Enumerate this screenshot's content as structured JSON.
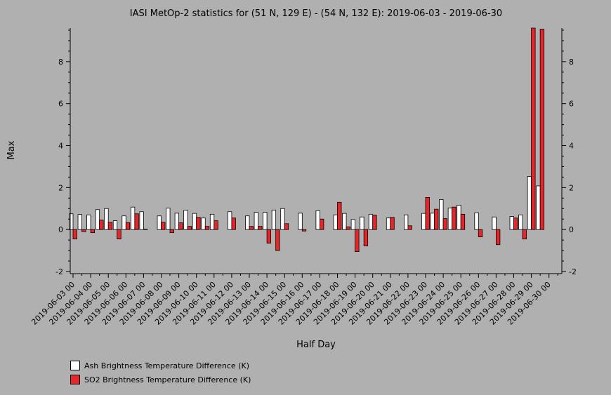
{
  "chart_data": {
    "type": "bar",
    "title": "IASI MetOp-2 statistics for (51 N, 129 E) - (54 N, 132 E): 2019-06-03 - 2019-06-30",
    "xlabel": "Half Day",
    "ylabel": "Max",
    "ylim": [
      -2.1,
      9.6
    ],
    "yticks": [
      -2,
      0,
      2,
      4,
      6,
      8
    ],
    "categories": [
      "2019-06-03 00",
      "2019-06-03 12",
      "2019-06-04 00",
      "2019-06-04 12",
      "2019-06-05 00",
      "2019-06-05 12",
      "2019-06-06 00",
      "2019-06-06 12",
      "2019-06-07 00",
      "2019-06-07 12",
      "2019-06-08 00",
      "2019-06-08 12",
      "2019-06-09 00",
      "2019-06-09 12",
      "2019-06-10 00",
      "2019-06-10 12",
      "2019-06-11 00",
      "2019-06-11 12",
      "2019-06-12 00",
      "2019-06-12 12",
      "2019-06-13 00",
      "2019-06-13 12",
      "2019-06-14 00",
      "2019-06-14 12",
      "2019-06-15 00",
      "2019-06-15 12",
      "2019-06-16 00",
      "2019-06-16 12",
      "2019-06-17 00",
      "2019-06-17 12",
      "2019-06-18 00",
      "2019-06-18 12",
      "2019-06-19 00",
      "2019-06-19 12",
      "2019-06-20 00",
      "2019-06-20 12",
      "2019-06-21 00",
      "2019-06-21 12",
      "2019-06-22 00",
      "2019-06-22 12",
      "2019-06-23 00",
      "2019-06-23 12",
      "2019-06-24 00",
      "2019-06-24 12",
      "2019-06-25 00",
      "2019-06-25 12",
      "2019-06-26 00",
      "2019-06-26 12",
      "2019-06-27 00",
      "2019-06-27 12",
      "2019-06-28 00",
      "2019-06-28 12",
      "2019-06-29 00",
      "2019-06-29 12",
      "2019-06-30 00",
      "2019-06-30 12"
    ],
    "tick_labels": [
      "2019-06-03 00",
      "2019-06-04 00",
      "2019-06-05 00",
      "2019-06-06 00",
      "2019-06-07 00",
      "2019-06-08 00",
      "2019-06-09 00",
      "2019-06-10 00",
      "2019-06-11 00",
      "2019-06-12 00",
      "2019-06-13 00",
      "2019-06-14 00",
      "2019-06-15 00",
      "2019-06-16 00",
      "2019-06-17 00",
      "2019-06-18 00",
      "2019-06-19 00",
      "2019-06-20 00",
      "2019-06-21 00",
      "2019-06-22 00",
      "2019-06-23 00",
      "2019-06-24 00",
      "2019-06-25 00",
      "2019-06-26 00",
      "2019-06-27 00",
      "2019-06-28 00",
      "2019-06-29 00",
      "2019-06-30 00"
    ],
    "series": [
      {
        "name": "Ash Brightness Temperature Difference (K)",
        "color": "#ffffff",
        "values": [
          0.75,
          0.72,
          0.7,
          0.95,
          1.0,
          0.42,
          0.65,
          1.07,
          0.85,
          null,
          0.65,
          1.02,
          0.78,
          0.92,
          0.77,
          0.55,
          0.73,
          null,
          0.85,
          null,
          0.65,
          0.82,
          0.82,
          0.93,
          1.0,
          null,
          0.78,
          null,
          0.9,
          null,
          0.7,
          0.77,
          0.48,
          0.6,
          0.73,
          null,
          0.55,
          null,
          0.7,
          null,
          0.77,
          0.78,
          1.43,
          1.03,
          1.16,
          null,
          0.8,
          null,
          0.6,
          null,
          0.62,
          0.7,
          2.53,
          2.08,
          null,
          null
        ]
      },
      {
        "name": "SO2 Brightness Temperature Difference (K)",
        "color": "#e8262a",
        "values": [
          -0.45,
          -0.1,
          -0.15,
          0.45,
          0.35,
          -0.45,
          0.33,
          0.75,
          0.02,
          null,
          0.35,
          -0.15,
          0.32,
          0.15,
          0.58,
          0.15,
          0.42,
          null,
          0.55,
          null,
          0.15,
          0.15,
          -0.65,
          -1.0,
          0.28,
          null,
          -0.07,
          null,
          0.5,
          null,
          1.3,
          0.13,
          -1.05,
          -0.78,
          0.68,
          null,
          0.58,
          null,
          0.18,
          null,
          1.53,
          0.97,
          0.52,
          1.07,
          0.73,
          null,
          -0.35,
          null,
          -0.72,
          null,
          0.55,
          -0.45,
          9.6,
          9.55,
          null,
          null
        ]
      }
    ],
    "legend": "bottom-left",
    "grid": false
  }
}
